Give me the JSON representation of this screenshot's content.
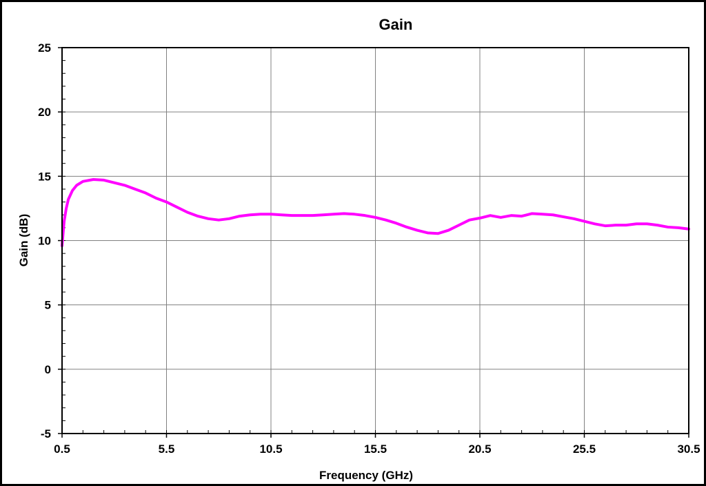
{
  "chart_data": {
    "type": "line",
    "title": "Gain",
    "xlabel": "Frequency (GHz)",
    "ylabel": "Gain (dB)",
    "xlim": [
      0.5,
      30.5
    ],
    "ylim": [
      -5,
      25
    ],
    "xticks": [
      0.5,
      5.5,
      10.5,
      15.5,
      20.5,
      25.5,
      30.5
    ],
    "xtick_labels": [
      "0.5",
      "5.5",
      "10.5",
      "15.5",
      "20.5",
      "25.5",
      "30.5"
    ],
    "yticks": [
      -5,
      0,
      5,
      10,
      15,
      20,
      25
    ],
    "ytick_labels": [
      "-5",
      "0",
      "5",
      "10",
      "15",
      "20",
      "25"
    ],
    "grid": true,
    "legend": "none",
    "series": [
      {
        "color": "#ff00ff",
        "x": [
          0.5,
          0.6,
          0.7,
          0.8,
          1.0,
          1.2,
          1.5,
          2.0,
          2.5,
          3.0,
          3.5,
          4.0,
          4.5,
          5.0,
          5.5,
          6.0,
          6.5,
          7.0,
          7.5,
          8.0,
          8.5,
          9.0,
          9.5,
          10.0,
          10.5,
          11.0,
          11.5,
          12.0,
          12.5,
          13.0,
          13.5,
          14.0,
          14.5,
          15.0,
          15.5,
          16.0,
          16.5,
          17.0,
          17.5,
          18.0,
          18.5,
          19.0,
          19.5,
          20.0,
          20.5,
          21.0,
          21.5,
          22.0,
          22.5,
          23.0,
          23.5,
          24.0,
          24.5,
          25.0,
          25.5,
          26.0,
          26.5,
          27.0,
          27.5,
          28.0,
          28.5,
          29.0,
          29.5,
          30.0,
          30.5
        ],
        "y": [
          9.6,
          11.5,
          12.5,
          13.2,
          13.9,
          14.3,
          14.6,
          14.75,
          14.7,
          14.5,
          14.3,
          14.0,
          13.7,
          13.3,
          13.0,
          12.6,
          12.2,
          11.9,
          11.7,
          11.6,
          11.7,
          11.9,
          12.0,
          12.05,
          12.05,
          12.0,
          11.95,
          11.95,
          11.95,
          12.0,
          12.05,
          12.1,
          12.05,
          11.95,
          11.8,
          11.6,
          11.35,
          11.05,
          10.8,
          10.6,
          10.55,
          10.8,
          11.2,
          11.6,
          11.75,
          11.95,
          11.8,
          11.95,
          11.9,
          12.1,
          12.05,
          12.0,
          11.85,
          11.7,
          11.5,
          11.3,
          11.15,
          11.2,
          11.2,
          11.3,
          11.3,
          11.2,
          11.05,
          11.0,
          10.9
        ]
      }
    ]
  }
}
